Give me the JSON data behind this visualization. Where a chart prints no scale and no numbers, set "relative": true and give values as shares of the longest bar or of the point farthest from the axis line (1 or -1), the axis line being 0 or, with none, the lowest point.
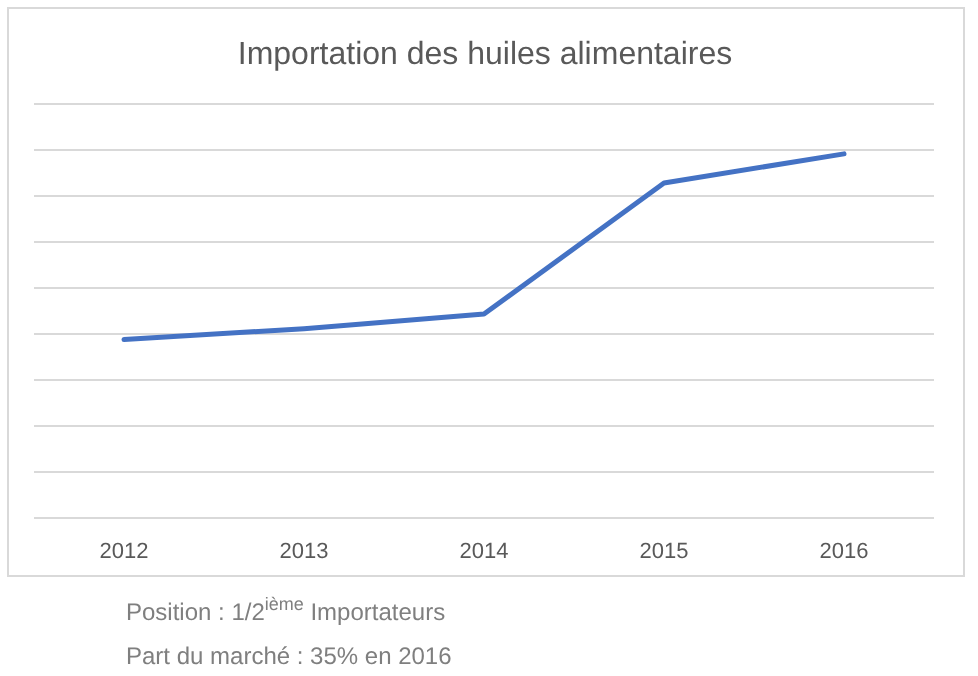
{
  "chart_data": {
    "type": "line",
    "title": "Importation des huiles alimentaires",
    "categories": [
      "2012",
      "2013",
      "2014",
      "2015",
      "2016"
    ],
    "series": [
      {
        "color": "#4472c4",
        "values": [
          0.49,
          0.52,
          0.56,
          0.92,
          1
        ]
      }
    ],
    "relative": true,
    "grid": "y",
    "marker": "none",
    "line_style": "solid",
    "annotations": [
      "Position : 1/2$^{ième}$ Importateurs",
      "Part du marché : 35% en 2016"
    ]
  }
}
